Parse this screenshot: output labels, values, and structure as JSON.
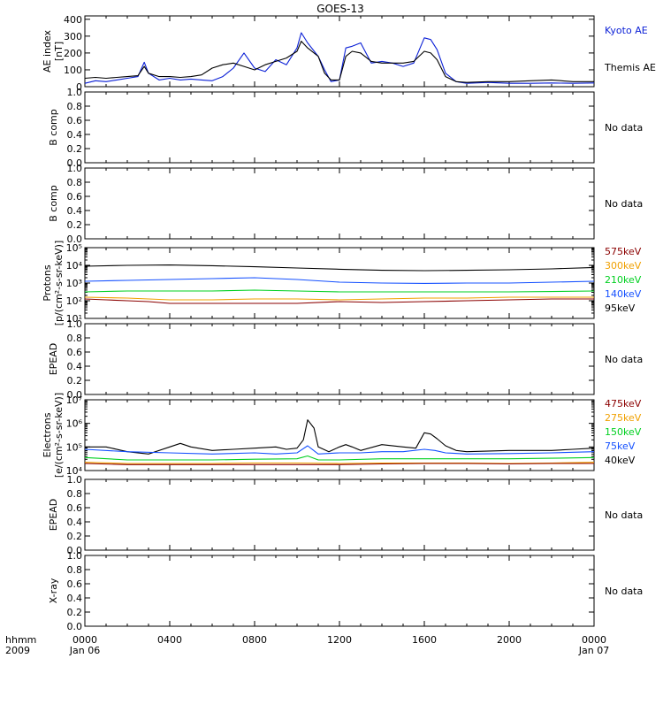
{
  "title": "GOES-13",
  "colors": {
    "black": "#000000",
    "blue": "#0a1fd6",
    "red": "#8b0000",
    "orange": "#f0a000",
    "green": "#00d020",
    "lightblue": "#1450ff"
  },
  "time_axis": {
    "label_top": "hhmm",
    "label_bottom": "2009",
    "ticks": [
      {
        "hour": 0,
        "label": "0000",
        "sub": "Jan 06"
      },
      {
        "hour": 4,
        "label": "0400",
        "sub": ""
      },
      {
        "hour": 8,
        "label": "0800",
        "sub": ""
      },
      {
        "hour": 12,
        "label": "1200",
        "sub": ""
      },
      {
        "hour": 16,
        "label": "1600",
        "sub": ""
      },
      {
        "hour": 20,
        "label": "2000",
        "sub": ""
      },
      {
        "hour": 24,
        "label": "0000",
        "sub": "Jan 07"
      }
    ]
  },
  "chart_data": [
    {
      "type": "line",
      "ylabel": [
        "AE index",
        "[nT]"
      ],
      "scale": "linear",
      "ylim": [
        0,
        420
      ],
      "yticks": [
        0,
        100,
        200,
        300,
        400
      ],
      "ytick_labels": [
        "0",
        "100",
        "200",
        "300",
        "400"
      ],
      "side_labels": [
        {
          "text": "Kyoto AE",
          "color": "#0a1fd6"
        },
        {
          "text": "Themis AE",
          "color": "#000000"
        }
      ],
      "series": [
        {
          "name": "Kyoto AE",
          "color": "#0a1fd6",
          "x": [
            0,
            0.5,
            1,
            1.5,
            2,
            2.5,
            2.8,
            3,
            3.5,
            4,
            4.5,
            5,
            5.5,
            6,
            6.5,
            7,
            7.5,
            8,
            8.5,
            9,
            9.5,
            10,
            10.2,
            10.5,
            11,
            11.3,
            11.6,
            12,
            12.3,
            12.6,
            13,
            13.5,
            14,
            14.5,
            15,
            15.5,
            16,
            16.3,
            16.6,
            17,
            17.5,
            18,
            19,
            20,
            21,
            22,
            23,
            24
          ],
          "y": [
            20,
            35,
            30,
            40,
            50,
            60,
            145,
            80,
            40,
            50,
            40,
            45,
            40,
            35,
            60,
            110,
            200,
            110,
            90,
            160,
            130,
            230,
            320,
            260,
            180,
            100,
            30,
            40,
            230,
            240,
            260,
            140,
            150,
            140,
            120,
            140,
            290,
            280,
            220,
            80,
            30,
            20,
            25,
            20,
            20,
            22,
            20,
            22
          ]
        },
        {
          "name": "Themis AE",
          "color": "#000000",
          "x": [
            0,
            0.5,
            1,
            1.5,
            2,
            2.5,
            2.8,
            3,
            3.5,
            4,
            4.5,
            5,
            5.5,
            6,
            6.5,
            7,
            7.5,
            8,
            8.5,
            9,
            9.5,
            10,
            10.2,
            10.5,
            11,
            11.3,
            11.6,
            12,
            12.3,
            12.6,
            13,
            13.5,
            14,
            14.5,
            15,
            15.5,
            16,
            16.3,
            16.6,
            17,
            17.5,
            18,
            19,
            20,
            21,
            22,
            23,
            24
          ],
          "y": [
            50,
            55,
            50,
            55,
            60,
            65,
            120,
            80,
            60,
            60,
            55,
            60,
            70,
            110,
            130,
            140,
            120,
            100,
            130,
            150,
            170,
            210,
            270,
            230,
            180,
            80,
            40,
            40,
            180,
            210,
            200,
            150,
            140,
            140,
            140,
            150,
            210,
            200,
            160,
            60,
            30,
            25,
            30,
            30,
            35,
            40,
            30,
            30
          ]
        }
      ]
    },
    {
      "type": "line",
      "ylabel": [
        "B comp"
      ],
      "scale": "linear",
      "ylim": [
        0,
        1
      ],
      "yticks": [
        0,
        0.2,
        0.4,
        0.6,
        0.8,
        1.0
      ],
      "ytick_labels": [
        "0.0",
        "0.2",
        "0.4",
        "0.6",
        "0.8",
        "1.0"
      ],
      "side_labels": [
        {
          "text": "No data",
          "color": "#000000"
        }
      ],
      "series": []
    },
    {
      "type": "line",
      "ylabel": [
        "B comp"
      ],
      "scale": "linear",
      "ylim": [
        0,
        1
      ],
      "yticks": [
        0,
        0.2,
        0.4,
        0.6,
        0.8,
        1.0
      ],
      "ytick_labels": [
        "0.0",
        "0.2",
        "0.4",
        "0.6",
        "0.8",
        "1.0"
      ],
      "side_labels": [
        {
          "text": "No data",
          "color": "#000000"
        }
      ],
      "series": []
    },
    {
      "type": "line",
      "ylabel": [
        "Protons",
        "[p/(cm²-s-sr-keV)]"
      ],
      "scale": "log",
      "ylim": [
        1,
        5
      ],
      "yticks": [
        1,
        2,
        3,
        4,
        5
      ],
      "ytick_labels": [
        "10¹",
        "10²",
        "10³",
        "10⁴",
        "10⁵"
      ],
      "side_labels": [
        {
          "text": "575keV",
          "color": "#8b0000"
        },
        {
          "text": "300keV",
          "color": "#f0a000"
        },
        {
          "text": "210keV",
          "color": "#00d020"
        },
        {
          "text": "140keV",
          "color": "#1450ff"
        },
        {
          "text": "95keV",
          "color": "#000000"
        }
      ],
      "series": [
        {
          "name": "95keV",
          "color": "#000000",
          "x": [
            0,
            2,
            4,
            6,
            8,
            10,
            12,
            14,
            16,
            18,
            20,
            22,
            24
          ],
          "y": [
            3.95,
            4.0,
            4.02,
            3.98,
            3.92,
            3.85,
            3.78,
            3.72,
            3.7,
            3.72,
            3.75,
            3.8,
            3.88
          ]
        },
        {
          "name": "140keV",
          "color": "#1450ff",
          "x": [
            0,
            2,
            4,
            6,
            8,
            10,
            12,
            14,
            16,
            18,
            20,
            22,
            24
          ],
          "y": [
            3.1,
            3.15,
            3.2,
            3.25,
            3.3,
            3.2,
            3.05,
            3.0,
            2.98,
            3.0,
            3.0,
            3.05,
            3.1
          ]
        },
        {
          "name": "210keV",
          "color": "#00d020",
          "x": [
            0,
            2,
            4,
            6,
            8,
            10,
            12,
            14,
            16,
            18,
            20,
            22,
            24
          ],
          "y": [
            2.5,
            2.55,
            2.55,
            2.55,
            2.6,
            2.55,
            2.5,
            2.5,
            2.5,
            2.5,
            2.5,
            2.52,
            2.55
          ]
        },
        {
          "name": "300keV",
          "color": "#f0a000",
          "x": [
            0,
            2,
            4,
            6,
            8,
            10,
            12,
            14,
            16,
            18,
            20,
            22,
            24
          ],
          "y": [
            2.2,
            2.15,
            2.05,
            2.05,
            2.1,
            2.1,
            2.05,
            2.1,
            2.15,
            2.15,
            2.2,
            2.2,
            2.2
          ]
        },
        {
          "name": "575keV",
          "color": "#8b0000",
          "x": [
            0,
            1,
            2,
            3,
            4,
            6,
            8,
            10,
            12,
            14,
            16,
            18,
            20,
            22,
            24
          ],
          "y": [
            2.1,
            2.05,
            2.0,
            1.95,
            1.85,
            1.85,
            1.85,
            1.85,
            1.95,
            1.9,
            1.95,
            2.0,
            2.05,
            2.1,
            2.1
          ]
        }
      ]
    },
    {
      "type": "line",
      "ylabel": [
        "EPEAD"
      ],
      "scale": "linear",
      "ylim": [
        0,
        1
      ],
      "yticks": [
        0,
        0.2,
        0.4,
        0.6,
        0.8,
        1.0
      ],
      "ytick_labels": [
        "0.0",
        "0.2",
        "0.4",
        "0.6",
        "0.8",
        "1.0"
      ],
      "side_labels": [
        {
          "text": "No data",
          "color": "#000000"
        }
      ],
      "series": []
    },
    {
      "type": "line",
      "ylabel": [
        "Electrons",
        "[e/(cm²-s-sr-keV)]"
      ],
      "scale": "log",
      "ylim": [
        4,
        7
      ],
      "yticks": [
        4,
        5,
        6,
        7
      ],
      "ytick_labels": [
        "10⁴",
        "10⁵",
        "10⁶",
        "10⁷"
      ],
      "side_labels": [
        {
          "text": "475keV",
          "color": "#8b0000"
        },
        {
          "text": "275keV",
          "color": "#f0a000"
        },
        {
          "text": "150keV",
          "color": "#00d020"
        },
        {
          "text": "75keV",
          "color": "#1450ff"
        },
        {
          "text": "40keV",
          "color": "#000000"
        }
      ],
      "series": [
        {
          "name": "40keV",
          "color": "#000000",
          "x": [
            0,
            1,
            2,
            3,
            4,
            4.5,
            5,
            6,
            7,
            8,
            9,
            9.5,
            10,
            10.3,
            10.5,
            10.8,
            11,
            11.5,
            12,
            12.3,
            12.6,
            13,
            14,
            15,
            15.6,
            16,
            16.3,
            16.6,
            17,
            17.5,
            18,
            20,
            22,
            23,
            24
          ],
          "y": [
            5.0,
            5.0,
            4.8,
            4.7,
            5.0,
            5.15,
            5.0,
            4.85,
            4.9,
            4.95,
            5.0,
            4.9,
            4.95,
            5.3,
            6.15,
            5.8,
            5.0,
            4.8,
            5.0,
            5.1,
            5.0,
            4.85,
            5.1,
            5.0,
            4.95,
            5.6,
            5.55,
            5.35,
            5.05,
            4.85,
            4.8,
            4.85,
            4.85,
            4.9,
            4.95
          ]
        },
        {
          "name": "75keV",
          "color": "#1450ff",
          "x": [
            0,
            2,
            4,
            6,
            8,
            9,
            10,
            10.5,
            11,
            12,
            13,
            14,
            15,
            16,
            16.5,
            17,
            18,
            20,
            22,
            24
          ],
          "y": [
            4.9,
            4.8,
            4.75,
            4.7,
            4.75,
            4.7,
            4.75,
            5.05,
            4.7,
            4.75,
            4.75,
            4.8,
            4.8,
            4.9,
            4.85,
            4.75,
            4.7,
            4.72,
            4.75,
            4.8
          ]
        },
        {
          "name": "150keV",
          "color": "#00d020",
          "x": [
            0,
            2,
            4,
            6,
            8,
            10,
            10.5,
            11,
            12,
            14,
            16,
            18,
            20,
            22,
            24
          ],
          "y": [
            4.55,
            4.45,
            4.45,
            4.45,
            4.48,
            4.5,
            4.62,
            4.45,
            4.45,
            4.5,
            4.5,
            4.5,
            4.5,
            4.52,
            4.55
          ]
        },
        {
          "name": "275keV",
          "color": "#f0a000",
          "x": [
            0,
            2,
            4,
            6,
            8,
            10,
            12,
            14,
            16,
            18,
            20,
            22,
            24
          ],
          "y": [
            4.35,
            4.3,
            4.3,
            4.3,
            4.32,
            4.32,
            4.3,
            4.32,
            4.32,
            4.32,
            4.3,
            4.32,
            4.35
          ]
        },
        {
          "name": "475keV",
          "color": "#8b0000",
          "x": [
            0,
            2,
            4,
            6,
            8,
            10,
            12,
            14,
            16,
            18,
            20,
            22,
            24
          ],
          "y": [
            4.3,
            4.25,
            4.25,
            4.25,
            4.25,
            4.25,
            4.25,
            4.28,
            4.3,
            4.3,
            4.28,
            4.3,
            4.3
          ]
        }
      ]
    },
    {
      "type": "line",
      "ylabel": [
        "EPEAD"
      ],
      "scale": "linear",
      "ylim": [
        0,
        1
      ],
      "yticks": [
        0,
        0.2,
        0.4,
        0.6,
        0.8,
        1.0
      ],
      "ytick_labels": [
        "0.0",
        "0.2",
        "0.4",
        "0.6",
        "0.8",
        "1.0"
      ],
      "side_labels": [
        {
          "text": "No data",
          "color": "#000000"
        }
      ],
      "series": []
    },
    {
      "type": "line",
      "ylabel": [
        "X-ray"
      ],
      "scale": "linear",
      "ylim": [
        0,
        1
      ],
      "yticks": [
        0,
        0.2,
        0.4,
        0.6,
        0.8,
        1.0
      ],
      "ytick_labels": [
        "0.0",
        "0.2",
        "0.4",
        "0.6",
        "0.8",
        "1.0"
      ],
      "side_labels": [
        {
          "text": "No data",
          "color": "#000000"
        }
      ],
      "series": []
    }
  ]
}
